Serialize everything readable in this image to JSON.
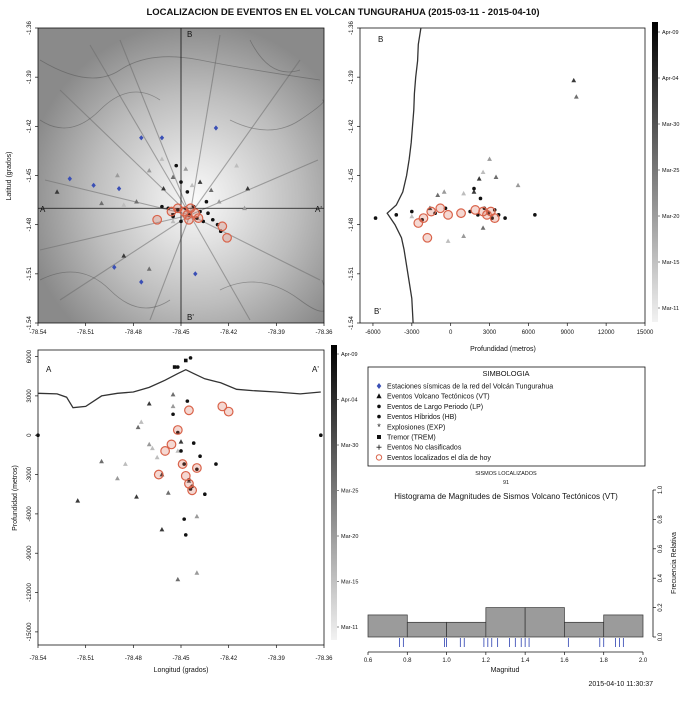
{
  "title": "LOCALIZACION DE EVENTOS EN EL VOLCAN TUNGURAHUA (2015-03-11 - 2015-04-10)",
  "timestamp": "2015-04-10 11:30:37",
  "colorbar_labels": [
    "Apr-09",
    "Apr-04",
    "Mar-30",
    "Mar-25",
    "Mar-20",
    "Mar-15",
    "Mar-11"
  ],
  "map": {
    "ylabel": "Latitud (grados)",
    "xticks": [
      "-78.54",
      "-78.51",
      "-78.48",
      "-78.45",
      "-78.42",
      "-78.39",
      "-78.36"
    ],
    "yticks": [
      "-1.36",
      "-1.39",
      "-1.42",
      "-1.45",
      "-1.48",
      "-1.51",
      "-1.54"
    ],
    "labels": {
      "A": "A",
      "A2": "A'",
      "B": "B",
      "B2": "B'"
    }
  },
  "section_b": {
    "xlabel": "Profundidad (metros)",
    "xticks": [
      "-6000",
      "-3000",
      "0",
      "3000",
      "6000",
      "9000",
      "12000",
      "15000"
    ],
    "yticks": [
      "-1.36",
      "-1.39",
      "-1.42",
      "-1.45",
      "-1.48",
      "-1.51",
      "-1.54"
    ],
    "labels": {
      "top": "B",
      "bottom": "B'"
    }
  },
  "section_a": {
    "xlabel": "Longitud (grados)",
    "ylabel": "Profundidad (metros)",
    "xticks": [
      "-78.54",
      "-78.51",
      "-78.48",
      "-78.45",
      "-78.42",
      "-78.39",
      "-78.36"
    ],
    "yticks": [
      "6000",
      "3000",
      "0",
      "-3000",
      "-6000",
      "-9000",
      "-12000",
      "-15000"
    ],
    "labels": {
      "left": "A",
      "right": "A'"
    }
  },
  "legend": {
    "title": "SIMBOLOGIA",
    "items": [
      {
        "symbol": "diamond",
        "color": "#3a4fb5",
        "label": "Estaciones sísmicas de la red del Volcán Tungurahua"
      },
      {
        "symbol": "triangle",
        "color": "#111111",
        "label": "Eventos Volcano Tectónicos (VT)"
      },
      {
        "symbol": "dot",
        "color": "#111111",
        "label": "Eventos de Largo Periodo (LP)"
      },
      {
        "symbol": "dot",
        "color": "#111111",
        "label": "Eventos Híbridos (HB)"
      },
      {
        "symbol": "star",
        "color": "#111111",
        "label": "Explosiones (EXP)"
      },
      {
        "symbol": "square",
        "color": "#111111",
        "label": "Tremor (TREM)"
      },
      {
        "symbol": "plus",
        "color": "#111111",
        "label": "Eventos No clasificados"
      },
      {
        "symbol": "ring",
        "color": "#d9634a",
        "label": "Eventos localizados el día de hoy"
      }
    ]
  },
  "count": {
    "label": "SISMOS LOCALIZADOS",
    "value": "91"
  },
  "histogram": {
    "title": "Histograma de Magnitudes de Sismos Volcano Tectónicos (VT)",
    "xlabel": "Magnitud",
    "ylabel": "Frecuencia Relativa",
    "xticks": [
      "0.6",
      "0.8",
      "1.0",
      "1.2",
      "1.4",
      "1.6",
      "1.8",
      "2.0"
    ],
    "yticks": [
      "0.0",
      "0.2",
      "0.4",
      "0.6",
      "0.8",
      "1.0"
    ]
  },
  "chart_data": [
    {
      "type": "scatter",
      "name_hint": "map",
      "xlim": [
        -78.54,
        -78.36
      ],
      "ylim": [
        -1.54,
        -1.36
      ],
      "crosshair": {
        "lon": -78.45,
        "lat": -1.47
      },
      "stations": [
        [
          -78.475,
          -1.427
        ],
        [
          -78.462,
          -1.427
        ],
        [
          -78.428,
          -1.421
        ],
        [
          -78.52,
          -1.452
        ],
        [
          -78.505,
          -1.456
        ],
        [
          -78.489,
          -1.458
        ],
        [
          -78.492,
          -1.506
        ],
        [
          -78.475,
          -1.515
        ],
        [
          -78.441,
          -1.51
        ]
      ],
      "vt": [
        [
          -78.528,
          -1.46
        ],
        [
          -78.5,
          -1.467
        ],
        [
          -78.49,
          -1.45
        ],
        [
          -78.486,
          -1.468
        ],
        [
          -78.486,
          -1.499
        ],
        [
          -78.478,
          -1.466
        ],
        [
          -78.47,
          -1.447
        ],
        [
          -78.462,
          -1.44
        ],
        [
          -78.461,
          -1.458
        ],
        [
          -78.455,
          -1.451
        ],
        [
          -78.447,
          -1.446
        ],
        [
          -78.443,
          -1.456
        ],
        [
          -78.438,
          -1.454
        ],
        [
          -78.431,
          -1.459
        ],
        [
          -78.426,
          -1.466
        ],
        [
          -78.415,
          -1.444
        ],
        [
          -78.408,
          -1.458
        ],
        [
          -78.47,
          -1.507
        ],
        [
          -78.41,
          -1.47
        ],
        [
          -78.455,
          -1.478
        ]
      ],
      "lp": [
        [
          -78.462,
          -1.469
        ],
        [
          -78.458,
          -1.47
        ],
        [
          -78.455,
          -1.475
        ],
        [
          -78.452,
          -1.471
        ],
        [
          -78.45,
          -1.478
        ],
        [
          -78.447,
          -1.47
        ],
        [
          -78.445,
          -1.474
        ],
        [
          -78.442,
          -1.469
        ],
        [
          -78.44,
          -1.476
        ],
        [
          -78.438,
          -1.472
        ],
        [
          -78.436,
          -1.478
        ],
        [
          -78.433,
          -1.473
        ],
        [
          -78.43,
          -1.477
        ],
        [
          -78.427,
          -1.48
        ],
        [
          -78.425,
          -1.484
        ],
        [
          -78.453,
          -1.444
        ],
        [
          -78.45,
          -1.454
        ],
        [
          -78.446,
          -1.46
        ],
        [
          -78.434,
          -1.466
        ]
      ],
      "square": [
        [
          -78.455,
          -1.474
        ]
      ],
      "today": [
        [
          -78.465,
          -1.477
        ],
        [
          -78.456,
          -1.472
        ],
        [
          -78.452,
          -1.47
        ],
        [
          -78.448,
          -1.472
        ],
        [
          -78.446,
          -1.474
        ],
        [
          -78.444,
          -1.47
        ],
        [
          -78.441,
          -1.473
        ],
        [
          -78.439,
          -1.476
        ],
        [
          -78.424,
          -1.481
        ],
        [
          -78.421,
          -1.488
        ],
        [
          -78.445,
          -1.477
        ]
      ]
    },
    {
      "type": "scatter",
      "name_hint": "section_b",
      "xlim": [
        -7000,
        15000
      ],
      "ylim": [
        -1.54,
        -1.36
      ],
      "topography": [
        [
          -2300,
          -1.36
        ],
        [
          -2500,
          -1.37
        ],
        [
          -2550,
          -1.38
        ],
        [
          -2700,
          -1.39
        ],
        [
          -2800,
          -1.4
        ],
        [
          -2850,
          -1.41
        ],
        [
          -2950,
          -1.42
        ],
        [
          -3050,
          -1.43
        ],
        [
          -3200,
          -1.44
        ],
        [
          -3400,
          -1.45
        ],
        [
          -3700,
          -1.46
        ],
        [
          -4200,
          -1.468
        ],
        [
          -4900,
          -1.473
        ],
        [
          -4300,
          -1.48
        ],
        [
          -3800,
          -1.488
        ],
        [
          -3600,
          -1.495
        ],
        [
          -3400,
          -1.505
        ],
        [
          -3200,
          -1.515
        ],
        [
          -3000,
          -1.525
        ],
        [
          -2900,
          -1.54
        ]
      ],
      "vt": [
        [
          9500,
          -1.392
        ],
        [
          9700,
          -1.402
        ],
        [
          3000,
          -1.44
        ],
        [
          2500,
          -1.448
        ],
        [
          2200,
          -1.452
        ],
        [
          3500,
          -1.451
        ],
        [
          -500,
          -1.46
        ],
        [
          1000,
          -1.461
        ],
        [
          1800,
          -1.46
        ],
        [
          -1000,
          -1.462
        ],
        [
          5200,
          -1.456
        ],
        [
          -3000,
          -1.475
        ],
        [
          -1600,
          -1.47
        ],
        [
          2500,
          -1.482
        ],
        [
          1000,
          -1.487
        ],
        [
          -200,
          -1.49
        ]
      ],
      "lp": [
        [
          -5800,
          -1.476
        ],
        [
          -4200,
          -1.474
        ],
        [
          -3000,
          -1.472
        ],
        [
          -2200,
          -1.477
        ],
        [
          -1200,
          -1.473
        ],
        [
          -400,
          -1.47
        ],
        [
          1500,
          -1.472
        ],
        [
          2100,
          -1.474
        ],
        [
          2600,
          -1.47
        ],
        [
          2900,
          -1.473
        ],
        [
          3200,
          -1.476
        ],
        [
          3400,
          -1.471
        ],
        [
          3700,
          -1.474
        ],
        [
          4200,
          -1.476
        ],
        [
          6500,
          -1.474
        ],
        [
          1800,
          -1.458
        ],
        [
          2300,
          -1.464
        ]
      ],
      "today": [
        [
          -2500,
          -1.479
        ],
        [
          -2100,
          -1.476
        ],
        [
          -1500,
          -1.472
        ],
        [
          -800,
          -1.47
        ],
        [
          -200,
          -1.474
        ],
        [
          800,
          -1.473
        ],
        [
          1900,
          -1.471
        ],
        [
          2500,
          -1.472
        ],
        [
          2800,
          -1.474
        ],
        [
          3100,
          -1.472
        ],
        [
          3400,
          -1.476
        ],
        [
          -1800,
          -1.488
        ]
      ]
    },
    {
      "type": "scatter",
      "name_hint": "section_a",
      "xlim": [
        -78.54,
        -78.36
      ],
      "ylim": [
        -16000,
        6500
      ],
      "topography": [
        [
          -78.54,
          3200
        ],
        [
          -78.528,
          3150
        ],
        [
          -78.522,
          2900
        ],
        [
          -78.518,
          2100
        ],
        [
          -78.51,
          2200
        ],
        [
          -78.5,
          3000
        ],
        [
          -78.49,
          3200
        ],
        [
          -78.48,
          3300
        ],
        [
          -78.47,
          3650
        ],
        [
          -78.46,
          4200
        ],
        [
          -78.452,
          4700
        ],
        [
          -78.447,
          5000
        ],
        [
          -78.442,
          4700
        ],
        [
          -78.435,
          4300
        ],
        [
          -78.425,
          4000
        ],
        [
          -78.415,
          3500
        ],
        [
          -78.405,
          3400
        ],
        [
          -78.39,
          3300
        ],
        [
          -78.375,
          3150
        ],
        [
          -78.362,
          3300
        ]
      ],
      "vt": [
        [
          -78.515,
          -5000
        ],
        [
          -78.5,
          -2000
        ],
        [
          -78.49,
          -3300
        ],
        [
          -78.485,
          -2200
        ],
        [
          -78.478,
          -4700
        ],
        [
          -78.477,
          600
        ],
        [
          -78.47,
          -700
        ],
        [
          -78.465,
          -1700
        ],
        [
          -78.462,
          -3000
        ],
        [
          -78.458,
          -4400
        ],
        [
          -78.455,
          2200
        ],
        [
          -78.452,
          -1200
        ],
        [
          -78.45,
          -500
        ],
        [
          -78.445,
          -3500
        ],
        [
          -78.44,
          -6200
        ],
        [
          -78.468,
          -1000
        ],
        [
          -78.462,
          -7200
        ],
        [
          -78.452,
          -11000
        ],
        [
          -78.44,
          -10500
        ],
        [
          -78.475,
          1000
        ],
        [
          -78.47,
          2400
        ],
        [
          -78.455,
          3100
        ]
      ],
      "lp": [
        [
          -78.54,
          0
        ],
        [
          -78.455,
          1600
        ],
        [
          -78.452,
          200
        ],
        [
          -78.45,
          -1200
        ],
        [
          -78.448,
          -2200
        ],
        [
          -78.445,
          -3400
        ],
        [
          -78.443,
          -3900
        ],
        [
          -78.44,
          -2600
        ],
        [
          -78.438,
          -1600
        ],
        [
          -78.442,
          -600
        ],
        [
          -78.446,
          2600
        ],
        [
          -78.444,
          -4100
        ],
        [
          -78.435,
          -4500
        ],
        [
          -78.428,
          -2200
        ],
        [
          -78.448,
          -6400
        ],
        [
          -78.447,
          -7600
        ],
        [
          -78.362,
          0
        ],
        [
          -78.452,
          5200
        ],
        [
          -78.444,
          5900
        ]
      ],
      "square": [
        [
          -78.454,
          5200
        ],
        [
          -78.447,
          5700
        ]
      ],
      "today": [
        [
          -78.464,
          -3000
        ],
        [
          -78.456,
          -700
        ],
        [
          -78.452,
          400
        ],
        [
          -78.449,
          -2200
        ],
        [
          -78.447,
          -3100
        ],
        [
          -78.445,
          -3700
        ],
        [
          -78.443,
          -4200
        ],
        [
          -78.44,
          -2500
        ],
        [
          -78.424,
          2200
        ],
        [
          -78.42,
          1800
        ],
        [
          -78.445,
          1900
        ],
        [
          -78.46,
          -1200
        ]
      ]
    },
    {
      "type": "bar",
      "name_hint": "histogram",
      "bin_edges": [
        0.6,
        0.8,
        1.0,
        1.2,
        1.4,
        1.6,
        1.8,
        2.0
      ],
      "values": [
        0.15,
        0.1,
        0.1,
        0.2,
        0.2,
        0.1,
        0.15
      ],
      "ylim": [
        0,
        1
      ],
      "rug": [
        0.76,
        0.78,
        0.99,
        1.0,
        1.07,
        1.09,
        1.19,
        1.21,
        1.23,
        1.26,
        1.32,
        1.35,
        1.38,
        1.4,
        1.42,
        1.62,
        1.78,
        1.8,
        1.86,
        1.88,
        1.9
      ]
    }
  ]
}
